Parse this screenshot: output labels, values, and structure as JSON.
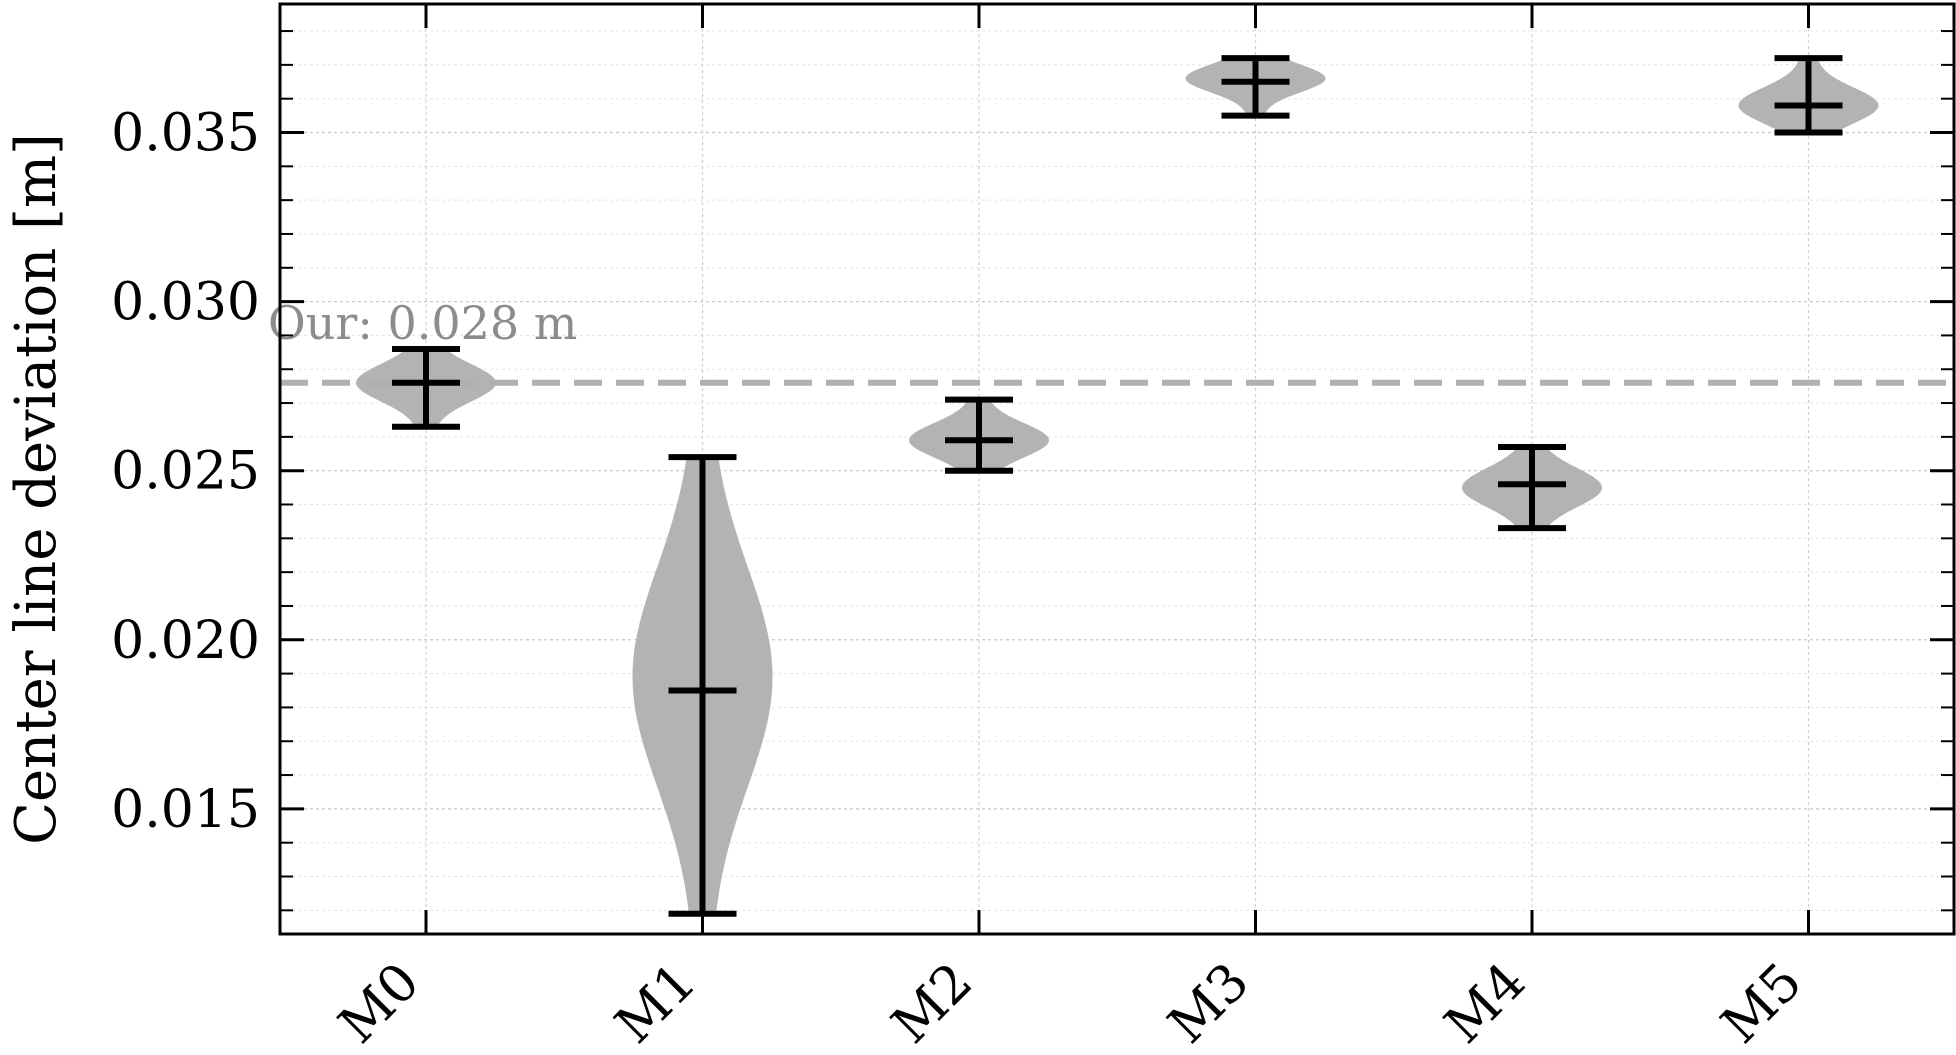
{
  "chart_data": {
    "type": "violin",
    "title": "",
    "xlabel": "",
    "ylabel": "Center line deviation [m]",
    "ylim": [
      0.0113,
      0.0388
    ],
    "yticks": [
      {
        "value": 0.015,
        "label": "0.015"
      },
      {
        "value": 0.02,
        "label": "0.020"
      },
      {
        "value": 0.025,
        "label": "0.025"
      },
      {
        "value": 0.03,
        "label": "0.030"
      },
      {
        "value": 0.035,
        "label": "0.035"
      }
    ],
    "categories": [
      "M0",
      "M1",
      "M2",
      "M3",
      "M4",
      "M5"
    ],
    "series": [
      {
        "category": "M0",
        "min": 0.0263,
        "median": 0.0276,
        "max": 0.0286,
        "mode": 0.0276
      },
      {
        "category": "M1",
        "min": 0.0119,
        "median": 0.0185,
        "max": 0.0254,
        "mode": 0.0189
      },
      {
        "category": "M2",
        "min": 0.025,
        "median": 0.0259,
        "max": 0.0271,
        "mode": 0.0259
      },
      {
        "category": "M3",
        "min": 0.0355,
        "median": 0.0365,
        "max": 0.0372,
        "mode": 0.0366
      },
      {
        "category": "M4",
        "min": 0.0233,
        "median": 0.0246,
        "max": 0.0257,
        "mode": 0.0245
      },
      {
        "category": "M5",
        "min": 0.035,
        "median": 0.0358,
        "max": 0.0372,
        "mode": 0.0358
      }
    ],
    "reference_line": {
      "value": 0.0276,
      "label": "Our: 0.028 m",
      "style": "dashed",
      "color": "#b0b0b0"
    },
    "violin_color": "#b3b3b3",
    "grid": true
  }
}
